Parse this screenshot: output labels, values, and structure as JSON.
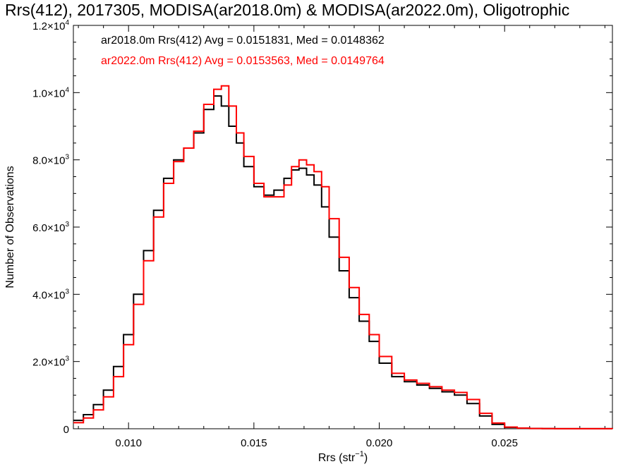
{
  "chart_data": {
    "type": "line",
    "title": "Rrs(412), 2017305, MODISA(ar2018.0m) & MODISA(ar2022.0m), Oligotrophic",
    "xlabel": "Rrs (str",
    "xlabel_sup": "−1",
    "xlabel_close": ")",
    "ylabel": "Number of Observations",
    "xlim": [
      0.0078,
      0.0293
    ],
    "ylim": [
      0,
      12000
    ],
    "x_ticks": [
      {
        "value": 0.01,
        "label": "0.010"
      },
      {
        "value": 0.015,
        "label": "0.015"
      },
      {
        "value": 0.02,
        "label": "0.020"
      },
      {
        "value": 0.025,
        "label": "0.025"
      }
    ],
    "y_ticks": [
      {
        "value": 0,
        "mant": "0",
        "exp": ""
      },
      {
        "value": 2000,
        "mant": "2.0×10",
        "exp": "3"
      },
      {
        "value": 4000,
        "mant": "4.0×10",
        "exp": "3"
      },
      {
        "value": 6000,
        "mant": "6.0×10",
        "exp": "3"
      },
      {
        "value": 8000,
        "mant": "8.0×10",
        "exp": "3"
      },
      {
        "value": 10000,
        "mant": "1.0×10",
        "exp": "4"
      },
      {
        "value": 12000,
        "mant": "1.2×10",
        "exp": "4"
      }
    ],
    "series": [
      {
        "name": "ar2018.0m",
        "color": "#000000",
        "stat_label": "ar2018.0m Rrs(412) Avg = 0.0151831, Med = 0.0148362",
        "x": [
          0.0078,
          0.0082,
          0.0086,
          0.009,
          0.0094,
          0.0098,
          0.0102,
          0.0106,
          0.011,
          0.0114,
          0.0118,
          0.0122,
          0.0126,
          0.013,
          0.0134,
          0.0137,
          0.014,
          0.0143,
          0.0146,
          0.015,
          0.0154,
          0.0158,
          0.0162,
          0.0165,
          0.0168,
          0.0171,
          0.0174,
          0.0177,
          0.018,
          0.0184,
          0.0188,
          0.0192,
          0.0196,
          0.02,
          0.0205,
          0.021,
          0.0215,
          0.022,
          0.0225,
          0.023,
          0.0235,
          0.024,
          0.0245,
          0.025,
          0.0255,
          0.026,
          0.0265,
          0.027,
          0.028,
          0.0293
        ],
        "y": [
          250,
          420,
          720,
          1150,
          1850,
          2800,
          4000,
          5300,
          6500,
          7450,
          8000,
          8350,
          8800,
          9500,
          9900,
          9600,
          9000,
          8500,
          7800,
          7200,
          6950,
          7100,
          7450,
          7700,
          7750,
          7550,
          7250,
          6600,
          5700,
          4700,
          3900,
          3200,
          2600,
          1950,
          1550,
          1400,
          1300,
          1200,
          1100,
          1000,
          750,
          380,
          130,
          40,
          15,
          8,
          5,
          3,
          2,
          1
        ]
      },
      {
        "name": "ar2022.0m",
        "color": "#ff0000",
        "stat_label": "ar2022.0m Rrs(412) Avg = 0.0153563, Med = 0.0149764",
        "x": [
          0.0078,
          0.0082,
          0.0086,
          0.009,
          0.0094,
          0.0098,
          0.0102,
          0.0106,
          0.011,
          0.0114,
          0.0118,
          0.0122,
          0.0126,
          0.013,
          0.0134,
          0.0137,
          0.014,
          0.0143,
          0.0146,
          0.015,
          0.0154,
          0.0158,
          0.0162,
          0.0165,
          0.0168,
          0.0171,
          0.0174,
          0.0177,
          0.018,
          0.0184,
          0.0188,
          0.0192,
          0.0196,
          0.02,
          0.0205,
          0.021,
          0.0215,
          0.022,
          0.0225,
          0.023,
          0.0235,
          0.024,
          0.0245,
          0.025,
          0.0255,
          0.026,
          0.0265,
          0.027,
          0.028,
          0.0293
        ],
        "y": [
          180,
          320,
          560,
          950,
          1550,
          2500,
          3700,
          5000,
          6300,
          7300,
          7950,
          8350,
          8850,
          9650,
          10100,
          10200,
          9600,
          8800,
          8100,
          7300,
          6900,
          6900,
          7250,
          7800,
          8000,
          7850,
          7650,
          7200,
          6250,
          5100,
          4200,
          3400,
          2800,
          2150,
          1650,
          1450,
          1350,
          1250,
          1150,
          1080,
          870,
          460,
          170,
          50,
          18,
          9,
          5,
          3,
          2,
          1
        ]
      }
    ],
    "grid": false,
    "legend": "top-left"
  }
}
